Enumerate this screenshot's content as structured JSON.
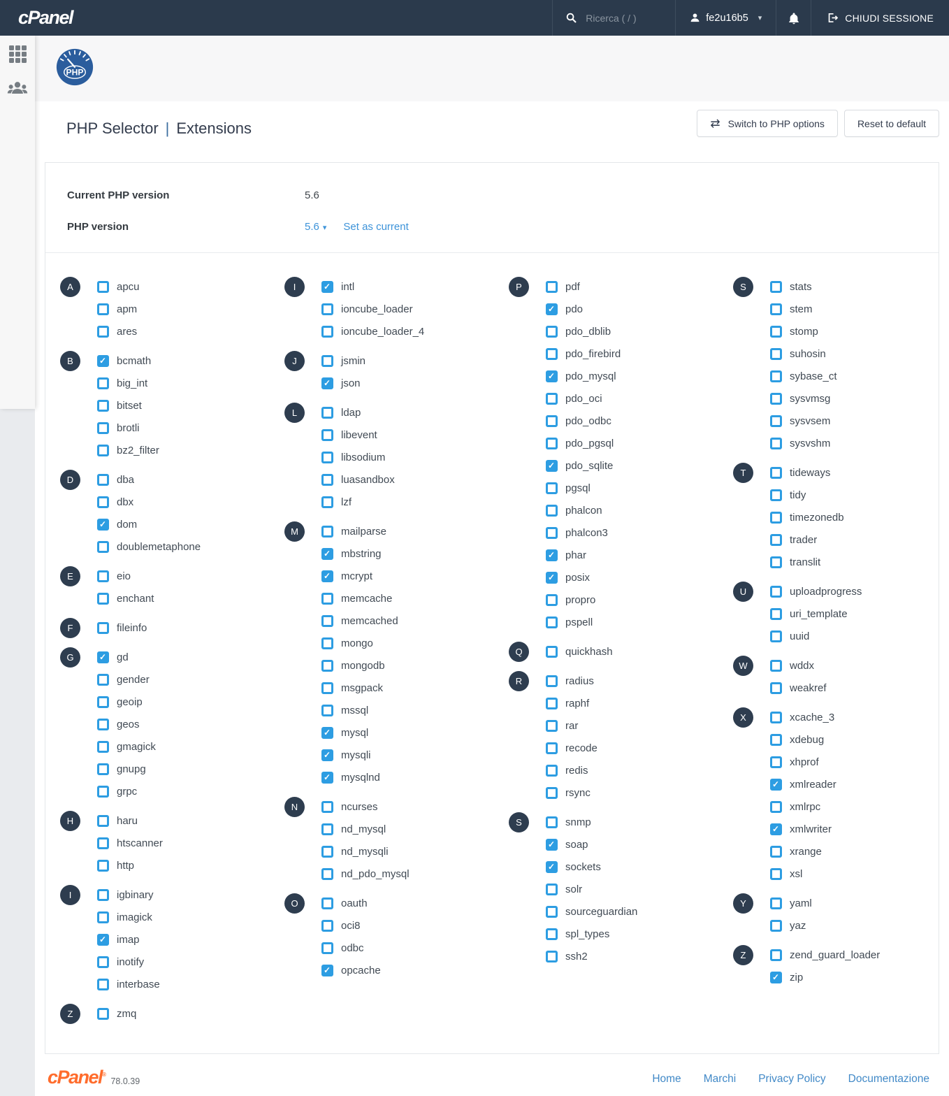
{
  "header": {
    "logo_text": "cPanel",
    "search_placeholder": "Ricerca ( / )",
    "username": "fe2u16b5",
    "logout_label": "CHIUDI SESSIONE"
  },
  "page": {
    "title_left": "PHP Selector",
    "title_separator": "|",
    "title_right": "Extensions",
    "switch_button_label": "Switch to PHP options",
    "reset_button_label": "Reset to default",
    "current_version_label": "Current PHP version",
    "current_version_value": "5.6",
    "version_label": "PHP version",
    "version_selected": "5.6",
    "set_as_current_label": "Set as current"
  },
  "colors": {
    "header_bg": "#2b3a4c",
    "accent_blue": "#2d9de2",
    "link_blue": "#3d93d9",
    "badge_bg": "#2e3d4f",
    "cpanel_orange": "#ff6c2c",
    "php_logo_blue": "#2b5d9d"
  },
  "extensions": {
    "columns": [
      [
        {
          "letter": "A",
          "items": [
            {
              "name": "apcu",
              "checked": false
            },
            {
              "name": "apm",
              "checked": false
            },
            {
              "name": "ares",
              "checked": false
            }
          ]
        },
        {
          "letter": "B",
          "items": [
            {
              "name": "bcmath",
              "checked": true
            },
            {
              "name": "big_int",
              "checked": false
            },
            {
              "name": "bitset",
              "checked": false
            },
            {
              "name": "brotli",
              "checked": false
            },
            {
              "name": "bz2_filter",
              "checked": false
            }
          ]
        },
        {
          "letter": "D",
          "items": [
            {
              "name": "dba",
              "checked": false
            },
            {
              "name": "dbx",
              "checked": false
            },
            {
              "name": "dom",
              "checked": true
            },
            {
              "name": "doublemetaphone",
              "checked": false
            }
          ]
        },
        {
          "letter": "E",
          "items": [
            {
              "name": "eio",
              "checked": false
            },
            {
              "name": "enchant",
              "checked": false
            }
          ]
        },
        {
          "letter": "F",
          "items": [
            {
              "name": "fileinfo",
              "checked": false
            }
          ]
        },
        {
          "letter": "G",
          "items": [
            {
              "name": "gd",
              "checked": true
            },
            {
              "name": "gender",
              "checked": false
            },
            {
              "name": "geoip",
              "checked": false
            },
            {
              "name": "geos",
              "checked": false
            },
            {
              "name": "gmagick",
              "checked": false
            },
            {
              "name": "gnupg",
              "checked": false
            },
            {
              "name": "grpc",
              "checked": false
            }
          ]
        },
        {
          "letter": "H",
          "items": [
            {
              "name": "haru",
              "checked": false
            },
            {
              "name": "htscanner",
              "checked": false
            },
            {
              "name": "http",
              "checked": false
            }
          ]
        },
        {
          "letter": "I",
          "items": [
            {
              "name": "igbinary",
              "checked": false
            },
            {
              "name": "imagick",
              "checked": false
            },
            {
              "name": "imap",
              "checked": true
            },
            {
              "name": "inotify",
              "checked": false
            },
            {
              "name": "interbase",
              "checked": false
            }
          ]
        },
        {
          "letter": "Z",
          "items": [
            {
              "name": "zmq",
              "checked": false
            }
          ]
        }
      ],
      [
        {
          "letter": "I",
          "items": [
            {
              "name": "intl",
              "checked": true
            },
            {
              "name": "ioncube_loader",
              "checked": false
            },
            {
              "name": "ioncube_loader_4",
              "checked": false
            }
          ]
        },
        {
          "letter": "J",
          "items": [
            {
              "name": "jsmin",
              "checked": false
            },
            {
              "name": "json",
              "checked": true
            }
          ]
        },
        {
          "letter": "L",
          "items": [
            {
              "name": "ldap",
              "checked": false
            },
            {
              "name": "libevent",
              "checked": false
            },
            {
              "name": "libsodium",
              "checked": false
            },
            {
              "name": "luasandbox",
              "checked": false
            },
            {
              "name": "lzf",
              "checked": false
            }
          ]
        },
        {
          "letter": "M",
          "items": [
            {
              "name": "mailparse",
              "checked": false
            },
            {
              "name": "mbstring",
              "checked": true
            },
            {
              "name": "mcrypt",
              "checked": true
            },
            {
              "name": "memcache",
              "checked": false
            },
            {
              "name": "memcached",
              "checked": false
            },
            {
              "name": "mongo",
              "checked": false
            },
            {
              "name": "mongodb",
              "checked": false
            },
            {
              "name": "msgpack",
              "checked": false
            },
            {
              "name": "mssql",
              "checked": false
            },
            {
              "name": "mysql",
              "checked": true
            },
            {
              "name": "mysqli",
              "checked": true
            },
            {
              "name": "mysqlnd",
              "checked": true
            }
          ]
        },
        {
          "letter": "N",
          "items": [
            {
              "name": "ncurses",
              "checked": false
            },
            {
              "name": "nd_mysql",
              "checked": false
            },
            {
              "name": "nd_mysqli",
              "checked": false
            },
            {
              "name": "nd_pdo_mysql",
              "checked": false
            }
          ]
        },
        {
          "letter": "O",
          "items": [
            {
              "name": "oauth",
              "checked": false
            },
            {
              "name": "oci8",
              "checked": false
            },
            {
              "name": "odbc",
              "checked": false
            },
            {
              "name": "opcache",
              "checked": true
            }
          ]
        }
      ],
      [
        {
          "letter": "P",
          "items": [
            {
              "name": "pdf",
              "checked": false
            },
            {
              "name": "pdo",
              "checked": true
            },
            {
              "name": "pdo_dblib",
              "checked": false
            },
            {
              "name": "pdo_firebird",
              "checked": false
            },
            {
              "name": "pdo_mysql",
              "checked": true
            },
            {
              "name": "pdo_oci",
              "checked": false
            },
            {
              "name": "pdo_odbc",
              "checked": false
            },
            {
              "name": "pdo_pgsql",
              "checked": false
            },
            {
              "name": "pdo_sqlite",
              "checked": true
            },
            {
              "name": "pgsql",
              "checked": false
            },
            {
              "name": "phalcon",
              "checked": false
            },
            {
              "name": "phalcon3",
              "checked": false
            },
            {
              "name": "phar",
              "checked": true
            },
            {
              "name": "posix",
              "checked": true
            },
            {
              "name": "propro",
              "checked": false
            },
            {
              "name": "pspell",
              "checked": false
            }
          ]
        },
        {
          "letter": "Q",
          "items": [
            {
              "name": "quickhash",
              "checked": false
            }
          ]
        },
        {
          "letter": "R",
          "items": [
            {
              "name": "radius",
              "checked": false
            },
            {
              "name": "raphf",
              "checked": false
            },
            {
              "name": "rar",
              "checked": false
            },
            {
              "name": "recode",
              "checked": false
            },
            {
              "name": "redis",
              "checked": false
            },
            {
              "name": "rsync",
              "checked": false
            }
          ]
        },
        {
          "letter": "S",
          "items": [
            {
              "name": "snmp",
              "checked": false
            },
            {
              "name": "soap",
              "checked": true
            },
            {
              "name": "sockets",
              "checked": true
            },
            {
              "name": "solr",
              "checked": false
            },
            {
              "name": "sourceguardian",
              "checked": false
            },
            {
              "name": "spl_types",
              "checked": false
            },
            {
              "name": "ssh2",
              "checked": false
            }
          ]
        }
      ],
      [
        {
          "letter": "S",
          "items": [
            {
              "name": "stats",
              "checked": false
            },
            {
              "name": "stem",
              "checked": false
            },
            {
              "name": "stomp",
              "checked": false
            },
            {
              "name": "suhosin",
              "checked": false
            },
            {
              "name": "sybase_ct",
              "checked": false
            },
            {
              "name": "sysvmsg",
              "checked": false
            },
            {
              "name": "sysvsem",
              "checked": false
            },
            {
              "name": "sysvshm",
              "checked": false
            }
          ]
        },
        {
          "letter": "T",
          "items": [
            {
              "name": "tideways",
              "checked": false
            },
            {
              "name": "tidy",
              "checked": false
            },
            {
              "name": "timezonedb",
              "checked": false
            },
            {
              "name": "trader",
              "checked": false
            },
            {
              "name": "translit",
              "checked": false
            }
          ]
        },
        {
          "letter": "U",
          "items": [
            {
              "name": "uploadprogress",
              "checked": false
            },
            {
              "name": "uri_template",
              "checked": false
            },
            {
              "name": "uuid",
              "checked": false
            }
          ]
        },
        {
          "letter": "W",
          "items": [
            {
              "name": "wddx",
              "checked": false
            },
            {
              "name": "weakref",
              "checked": false
            }
          ]
        },
        {
          "letter": "X",
          "items": [
            {
              "name": "xcache_3",
              "checked": false
            },
            {
              "name": "xdebug",
              "checked": false
            },
            {
              "name": "xhprof",
              "checked": false
            },
            {
              "name": "xmlreader",
              "checked": true
            },
            {
              "name": "xmlrpc",
              "checked": false
            },
            {
              "name": "xmlwriter",
              "checked": true
            },
            {
              "name": "xrange",
              "checked": false
            },
            {
              "name": "xsl",
              "checked": false
            }
          ]
        },
        {
          "letter": "Y",
          "items": [
            {
              "name": "yaml",
              "checked": false
            },
            {
              "name": "yaz",
              "checked": false
            }
          ]
        },
        {
          "letter": "Z",
          "items": [
            {
              "name": "zend_guard_loader",
              "checked": false
            },
            {
              "name": "zip",
              "checked": true
            }
          ]
        }
      ]
    ]
  },
  "footer": {
    "logo_text": "cPanel",
    "trademark": "®",
    "version": "78.0.39",
    "links": [
      "Home",
      "Marchi",
      "Privacy Policy",
      "Documentazione"
    ]
  }
}
